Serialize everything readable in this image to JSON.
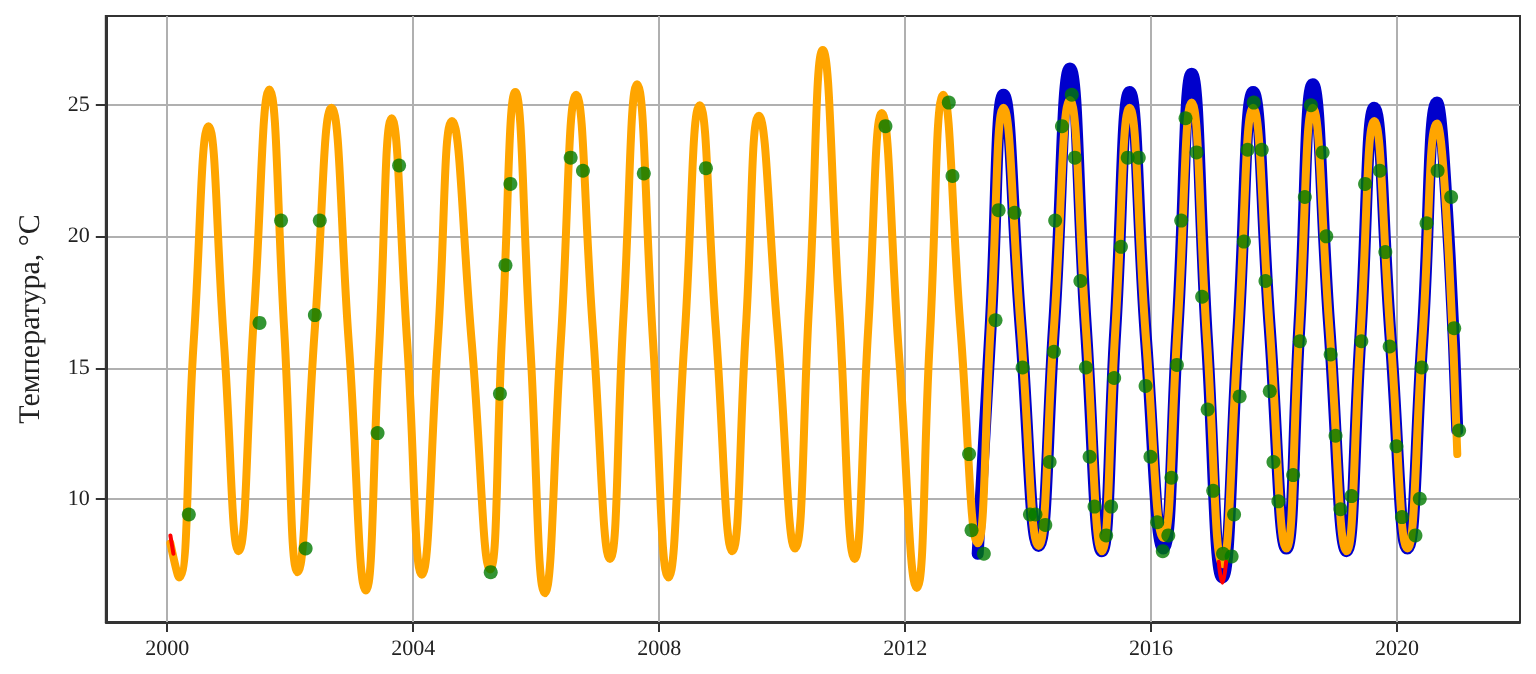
{
  "chart_data": {
    "type": "line",
    "ylabel": "Температура, °С",
    "xlim": [
      1999.0,
      2022.0
    ],
    "xticks": [
      2000,
      2004,
      2008,
      2012,
      2016,
      2020
    ],
    "ylim": [
      5.3,
      28.4
    ],
    "yticks": [
      10,
      15,
      20,
      25
    ],
    "grid": true,
    "marker": "none",
    "line_style": "solid",
    "series": [
      {
        "color": "#ff0000",
        "x": [
          2000.05,
          2000.1
        ],
        "values": [
          8.6,
          7.9
        ]
      },
      {
        "color": "#ff0000",
        "x": [
          2017.1,
          2017.16,
          2017.22
        ],
        "values": [
          7.6,
          6.8,
          7.6
        ]
      },
      {
        "color": "#0000cc",
        "x": [
          2013.18,
          2013.39,
          2013.6,
          2013.88,
          2014.17,
          2014.42,
          2014.68,
          2014.94,
          2015.2,
          2015.42,
          2015.65,
          2015.92,
          2016.2,
          2016.43,
          2016.66,
          2016.91,
          2017.16,
          2017.41,
          2017.66,
          2017.93,
          2018.2,
          2018.41,
          2018.63,
          2018.9,
          2019.18,
          2019.4,
          2019.63,
          2019.9,
          2020.17,
          2020.41,
          2020.65,
          2020.8,
          2020.98
        ],
        "values": [
          7.9,
          16.5,
          25.4,
          16.5,
          8.2,
          16.5,
          26.4,
          16.5,
          8.0,
          16.5,
          25.5,
          16,
          8.1,
          16.5,
          26.2,
          16,
          7.0,
          16,
          25.5,
          16.5,
          8.1,
          16.5,
          25.8,
          16.5,
          8.0,
          16,
          24.9,
          16,
          8.1,
          16,
          25.1,
          21.5,
          12.6
        ]
      },
      {
        "color": "#ffa500",
        "x": [
          2000.05,
          2000.19,
          2000.43,
          2000.67,
          2000.92,
          2001.16,
          2001.41,
          2001.66,
          2001.9,
          2002.12,
          2002.4,
          2002.67,
          2002.95,
          2003.23,
          2003.44,
          2003.65,
          2003.9,
          2004.14,
          2004.4,
          2004.63,
          2004.95,
          2005.25,
          2005.45,
          2005.66,
          2005.9,
          2006.14,
          2006.4,
          2006.65,
          2006.92,
          2007.2,
          2007.42,
          2007.64,
          2007.9,
          2008.15,
          2008.41,
          2008.66,
          2008.92,
          2009.19,
          2009.41,
          2009.62,
          2009.92,
          2010.21,
          2010.44,
          2010.66,
          2010.92,
          2011.18,
          2011.4,
          2011.62,
          2011.9,
          2012.19,
          2012.4,
          2012.62,
          2012.9,
          2013.18,
          2013.39,
          2013.6,
          2013.88,
          2014.17,
          2014.42,
          2014.68,
          2014.94,
          2015.2,
          2015.42,
          2015.65,
          2015.92,
          2016.2,
          2016.43,
          2016.66,
          2016.91,
          2017.16,
          2017.41,
          2017.66,
          2017.93,
          2018.2,
          2018.41,
          2018.63,
          2018.9,
          2019.18,
          2019.4,
          2019.63,
          2019.9,
          2020.17,
          2020.41,
          2020.65,
          2020.8,
          2020.98
        ],
        "values": [
          8.3,
          7.0,
          16,
          24.2,
          16,
          8.0,
          17,
          25.6,
          16.5,
          7.2,
          16.5,
          24.9,
          16,
          6.5,
          15.5,
          24.5,
          16,
          7.1,
          16,
          24.4,
          16,
          7.3,
          16.5,
          25.5,
          16,
          6.4,
          16,
          25.4,
          16.5,
          7.7,
          17,
          25.8,
          16,
          7.0,
          16,
          25.0,
          16.5,
          8.0,
          16.5,
          24.6,
          16.5,
          8.1,
          17.5,
          27.1,
          17.5,
          7.7,
          16.5,
          24.7,
          15.5,
          6.6,
          16,
          25.4,
          16.5,
          8.3,
          16.5,
          24.9,
          16.5,
          8.2,
          16.5,
          25.2,
          16.5,
          8.0,
          16.5,
          24.9,
          16,
          8.5,
          16.5,
          25.1,
          16,
          7.5,
          16,
          24.9,
          16.5,
          8.1,
          16.5,
          24.9,
          16.5,
          8.0,
          16,
          24.4,
          16,
          8.1,
          16,
          24.3,
          21,
          11.7
        ]
      },
      {
        "type": "scatter",
        "marker": "circle",
        "color": "#007a00",
        "x": [
          2000.35,
          2001.5,
          2001.85,
          2002.25,
          2002.4,
          2002.48,
          2003.42,
          2003.77,
          2005.26,
          2005.41,
          2005.5,
          2005.58,
          2006.56,
          2006.76,
          2007.75,
          2008.76,
          2011.68,
          2012.71,
          2012.77,
          2013.04,
          2013.08,
          2013.28,
          2013.47,
          2013.52,
          2013.78,
          2013.91,
          2014.03,
          2014.12,
          2014.28,
          2014.35,
          2014.42,
          2014.44,
          2014.55,
          2014.71,
          2014.76,
          2014.85,
          2014.94,
          2015.0,
          2015.08,
          2015.27,
          2015.35,
          2015.4,
          2015.51,
          2015.62,
          2015.8,
          2015.91,
          2015.99,
          2016.1,
          2016.19,
          2016.28,
          2016.33,
          2016.42,
          2016.49,
          2016.56,
          2016.74,
          2016.83,
          2016.92,
          2017.01,
          2017.17,
          2017.31,
          2017.35,
          2017.44,
          2017.51,
          2017.57,
          2017.67,
          2017.8,
          2017.86,
          2017.93,
          2017.99,
          2018.07,
          2018.31,
          2018.42,
          2018.5,
          2018.6,
          2018.79,
          2018.85,
          2018.92,
          2019.0,
          2019.08,
          2019.26,
          2019.42,
          2019.48,
          2019.72,
          2019.81,
          2019.88,
          2019.99,
          2020.08,
          2020.3,
          2020.37,
          2020.4,
          2020.48,
          2020.66,
          2020.88,
          2020.93,
          2021.01
        ],
        "values": [
          9.4,
          16.7,
          20.6,
          8.1,
          17.0,
          20.6,
          12.5,
          22.7,
          7.2,
          14.0,
          18.9,
          22.0,
          23.0,
          22.5,
          22.4,
          22.6,
          24.2,
          25.1,
          22.3,
          11.7,
          8.8,
          7.9,
          16.8,
          21.0,
          20.9,
          15.0,
          9.4,
          9.4,
          9.0,
          11.4,
          15.6,
          20.6,
          24.2,
          25.4,
          23.0,
          18.3,
          15.0,
          11.6,
          9.7,
          8.6,
          9.7,
          14.6,
          19.6,
          23.0,
          23.0,
          14.3,
          11.6,
          9.1,
          8.0,
          8.6,
          10.8,
          15.1,
          20.6,
          24.5,
          23.2,
          17.7,
          13.4,
          10.3,
          7.9,
          7.8,
          9.4,
          13.9,
          19.8,
          23.3,
          25.1,
          23.3,
          18.3,
          14.1,
          11.4,
          9.9,
          10.9,
          16.0,
          21.5,
          25.0,
          23.2,
          20.0,
          15.5,
          12.4,
          9.6,
          10.1,
          16.0,
          22.0,
          22.5,
          19.4,
          15.8,
          12.0,
          9.3,
          8.6,
          10.0,
          15.0,
          20.5,
          22.5,
          21.5,
          16.5,
          12.6
        ]
      }
    ]
  }
}
